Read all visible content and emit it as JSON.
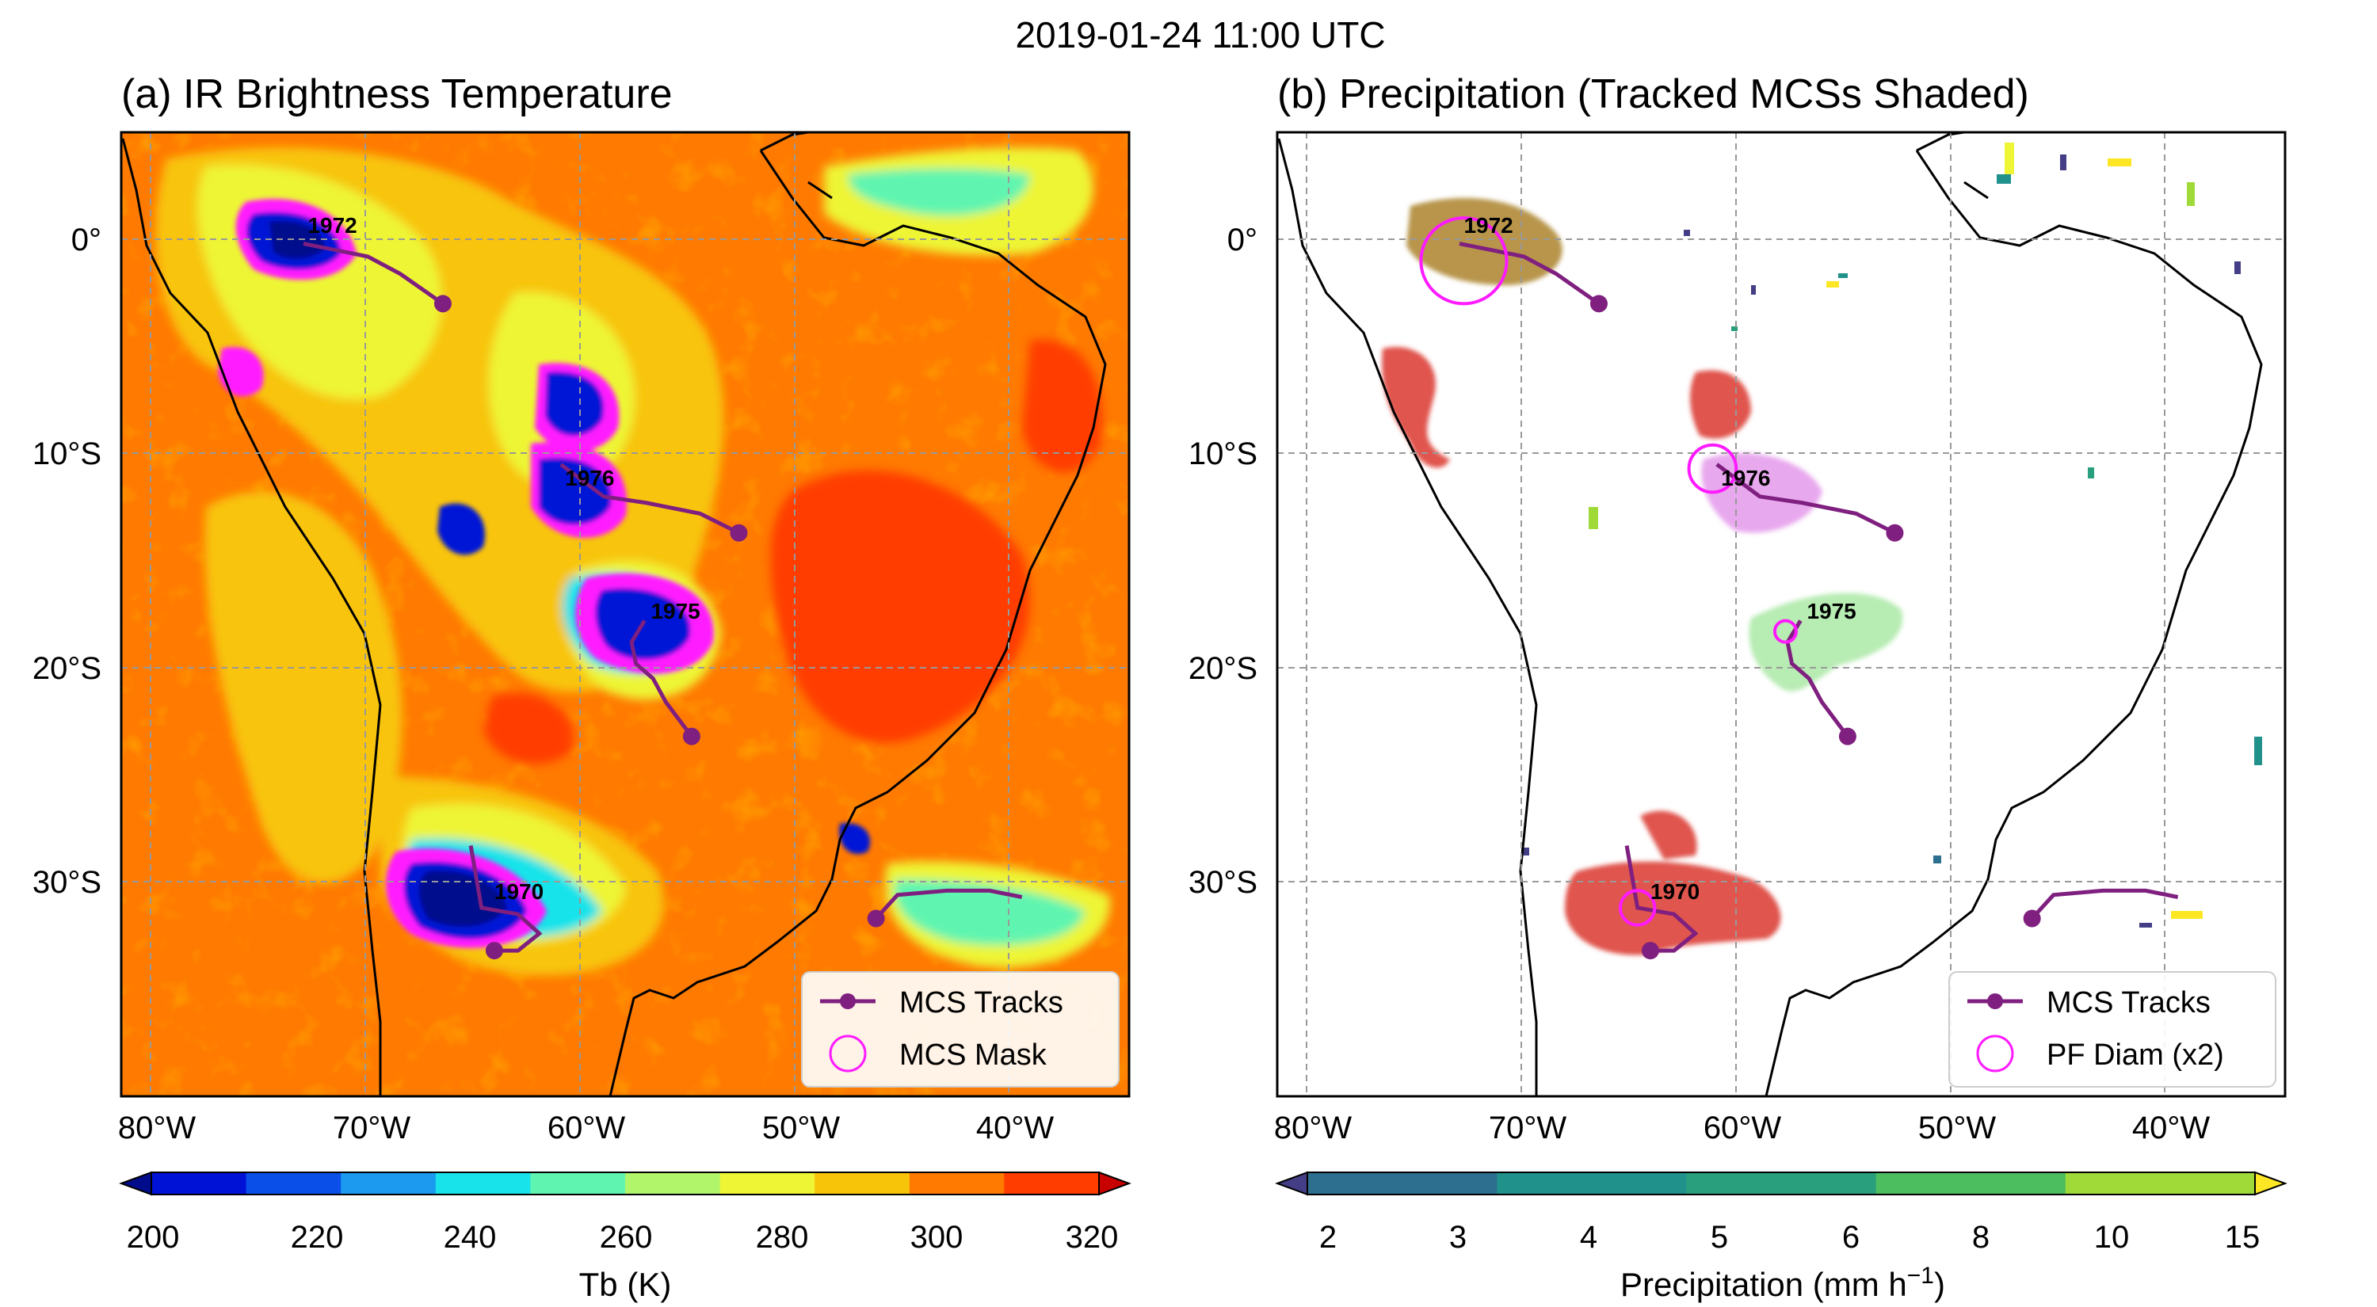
{
  "figure": {
    "suptitle": "2019-01-24 11:00 UTC"
  },
  "map_extent": {
    "lon_min": -82,
    "lon_max": -35,
    "lat_min": -40,
    "lat_max": 5
  },
  "axis_ticks": {
    "lon": [
      -80,
      -70,
      -60,
      -50,
      -40
    ],
    "lat": [
      0,
      -10,
      -20,
      -30
    ],
    "lon_labels": [
      "80°W",
      "70°W",
      "60°W",
      "50°W",
      "40°W"
    ],
    "lat_labels": [
      "0°",
      "10°S",
      "20°S",
      "30°S"
    ]
  },
  "panels": [
    {
      "title": "(a) IR Brightness Temperature",
      "legend": {
        "track_label": "MCS Tracks",
        "mask_label": "MCS Mask"
      }
    },
    {
      "title": "(b) Precipitation (Tracked MCSs Shaded)",
      "legend": {
        "track_label": "MCS Tracks",
        "mask_label": "PF Diam (x2)"
      }
    }
  ],
  "colorbars": [
    {
      "label": "Tb (K)",
      "ticks": [
        "200",
        "220",
        "240",
        "260",
        "280",
        "300",
        "320"
      ],
      "colors": [
        "#000c8c",
        "#0012d6",
        "#0a4fe8",
        "#1b9af0",
        "#19e3ea",
        "#5ff5b0",
        "#b0f56a",
        "#eef534",
        "#f8c40a",
        "#ff7a00",
        "#ff3d00",
        "#c80000"
      ]
    },
    {
      "label_main": "Precipitation (mm h",
      "label_sup": "−1",
      "label_end": ")",
      "ticks": [
        "2",
        "3",
        "4",
        "5",
        "6",
        "8",
        "10",
        "15"
      ],
      "colors": [
        "#433e85",
        "#2d6f8e",
        "#21918c",
        "#2a9f7d",
        "#4cbe5f",
        "#a0da39",
        "#fde725"
      ]
    }
  ],
  "colors": {
    "track": "#7f1f7f",
    "mask_ring": "#ff1aff",
    "tb_background": "#ff7a00",
    "tb_warm": "#ff3d00",
    "tb_mid": "#f8c40a"
  },
  "mcs_tracks": [
    {
      "id": "1972",
      "label_lon": -73.3,
      "label_lat": 0.3,
      "path": [
        [
          -73.5,
          -0.2
        ],
        [
          -71.5,
          -0.6
        ],
        [
          -70.5,
          -0.8
        ],
        [
          -69,
          -1.6
        ],
        [
          -67,
          -3
        ]
      ],
      "end": [
        -67,
        -3
      ],
      "pf_diam_lon": -73.3,
      "pf_diam_lat": -1.0,
      "pf_ring_radius_deg": 2.0,
      "precip_color": "#b8954b"
    },
    {
      "id": "1976",
      "label_lon": -61.3,
      "label_lat": -11.5,
      "path": [
        [
          -61.5,
          -10.5
        ],
        [
          -59.5,
          -12
        ],
        [
          -57.5,
          -12.3
        ],
        [
          -55,
          -12.8
        ],
        [
          -53.2,
          -13.7
        ]
      ],
      "end": [
        -53.2,
        -13.7
      ],
      "pf_diam_lon": -61.7,
      "pf_diam_lat": -10.7,
      "pf_ring_radius_deg": 1.1,
      "precip_color": "#e8a8ee"
    },
    {
      "id": "1975",
      "label_lon": -57.3,
      "label_lat": -17.7,
      "path": [
        [
          -57.6,
          -17.8
        ],
        [
          -58.2,
          -18.8
        ],
        [
          -58,
          -19.8
        ],
        [
          -57.2,
          -20.5
        ],
        [
          -56.6,
          -21.6
        ],
        [
          -55.4,
          -23.2
        ]
      ],
      "end": [
        -55.4,
        -23.2
      ],
      "pf_diam_lon": -58.3,
      "pf_diam_lat": -18.3,
      "pf_ring_radius_deg": 0.5,
      "precip_color": "#b7ecb3"
    },
    {
      "id": "1970",
      "label_lon": -64.6,
      "label_lat": -30.8,
      "path": [
        [
          -65.7,
          -28.3
        ],
        [
          -65.2,
          -31.2
        ],
        [
          -63.5,
          -31.5
        ],
        [
          -62.5,
          -32.4
        ],
        [
          -63.5,
          -33.2
        ],
        [
          -64.6,
          -33.2
        ]
      ],
      "end": [
        -64.6,
        -33.2
      ],
      "pf_diam_lon": -65.2,
      "pf_diam_lat": -31.2,
      "pf_ring_radius_deg": 0.8,
      "precip_color": "#e0544d"
    },
    {
      "id": "",
      "label_lon": null,
      "label_lat": null,
      "path": [
        [
          -46.8,
          -31.7
        ],
        [
          -45.8,
          -30.6
        ],
        [
          -43.5,
          -30.4
        ],
        [
          -41.5,
          -30.4
        ],
        [
          -40,
          -30.7
        ]
      ],
      "end": [
        -46.8,
        -31.7
      ],
      "pf_diam_lon": null,
      "pf_diam_lat": null,
      "pf_ring_radius_deg": 0,
      "precip_color": null
    }
  ]
}
